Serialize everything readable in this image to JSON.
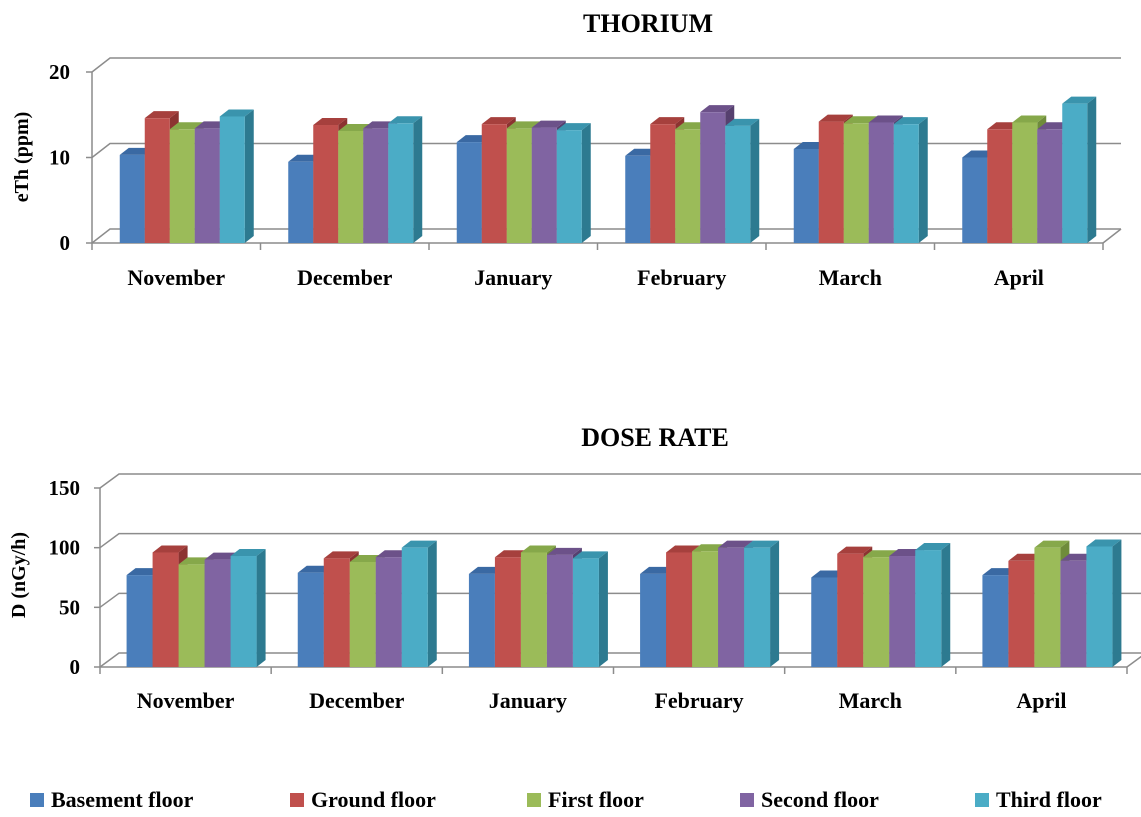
{
  "series_colors": [
    {
      "front": "#4a7ebb",
      "top": "#3a69a3",
      "side": "#2f5886"
    },
    {
      "front": "#c0504d",
      "top": "#a6403d",
      "side": "#8c3331"
    },
    {
      "front": "#9bbb59",
      "top": "#86a84a",
      "side": "#6f8c3b"
    },
    {
      "front": "#8064a2",
      "top": "#6c5189",
      "side": "#56406f"
    },
    {
      "front": "#4bacc6",
      "top": "#3a94ad",
      "side": "#2d7a90"
    }
  ],
  "chart_data": [
    {
      "type": "bar",
      "title": "THORIUM",
      "ylabel": "eTh (ppm)",
      "ylim": [
        0,
        20
      ],
      "yticks": [
        "0",
        "10",
        "20"
      ],
      "categories": [
        "November",
        "December",
        "January",
        "February",
        "March",
        "April"
      ],
      "series": [
        {
          "name": "Basement floor",
          "values": [
            10.3,
            9.5,
            11.8,
            10.2,
            11.0,
            10.0
          ]
        },
        {
          "name": "Ground floor",
          "values": [
            14.6,
            13.8,
            13.9,
            13.9,
            14.2,
            13.3
          ]
        },
        {
          "name": "First floor",
          "values": [
            13.3,
            13.1,
            13.4,
            13.3,
            14.0,
            14.1
          ]
        },
        {
          "name": "Second floor",
          "values": [
            13.4,
            13.4,
            13.5,
            15.3,
            14.1,
            13.3
          ]
        },
        {
          "name": "Third floor",
          "values": [
            14.8,
            14.0,
            13.2,
            13.7,
            13.9,
            16.3
          ]
        }
      ],
      "grid": true
    },
    {
      "type": "bar",
      "title": "DOSE RATE",
      "ylabel": "D (nGy/h)",
      "ylim": [
        0,
        150
      ],
      "yticks": [
        "0",
        "50",
        "100",
        "150"
      ],
      "categories": [
        "November",
        "December",
        "January",
        "February",
        "March",
        "April"
      ],
      "series": [
        {
          "name": "Basement floor",
          "values": [
            77,
            79,
            78,
            78,
            75,
            77
          ]
        },
        {
          "name": "Ground floor",
          "values": [
            96,
            91,
            92,
            96,
            95,
            89
          ]
        },
        {
          "name": "First floor",
          "values": [
            86,
            88,
            96,
            97,
            92,
            100
          ]
        },
        {
          "name": "Second floor",
          "values": [
            90,
            92,
            94,
            100,
            93,
            89
          ]
        },
        {
          "name": "Third floor",
          "values": [
            93,
            100,
            91,
            100,
            98,
            101
          ]
        }
      ],
      "grid": true
    }
  ],
  "legend": {
    "placement": "bottom",
    "items": [
      "Basement floor",
      "Ground floor",
      "First floor",
      "Second floor",
      "Third floor"
    ]
  }
}
